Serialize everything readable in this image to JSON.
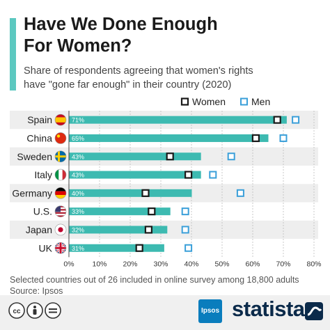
{
  "header": {
    "title_line1": "Have We Done Enough",
    "title_line2": "For Women?",
    "subtitle_line1": "Share of respondents agreeing that women's rights",
    "subtitle_line2": "have \"gone far enough\" in their country (2020)"
  },
  "chart_data": {
    "type": "bar",
    "orientation": "horizontal",
    "categories": [
      "Spain",
      "China",
      "Sweden",
      "Italy",
      "Germany",
      "U.S.",
      "Japan",
      "UK"
    ],
    "bar_labels": [
      "71%",
      "65%",
      "43%",
      "43%",
      "40%",
      "33%",
      "32%",
      "31%"
    ],
    "series": [
      {
        "name": "",
        "kind": "bar",
        "values": [
          71,
          65,
          43,
          43,
          40,
          33,
          32,
          31
        ],
        "color": "#3dbab1"
      },
      {
        "name": "Women",
        "kind": "marker",
        "marker": "filled-square",
        "values": [
          68,
          61,
          33,
          39,
          25,
          27,
          26,
          23
        ],
        "color": "#1a1a1a"
      },
      {
        "name": "Men",
        "kind": "marker",
        "marker": "hollow-square",
        "values": [
          74,
          70,
          53,
          47,
          56,
          38,
          38,
          39
        ],
        "color": "#3a9fd9"
      }
    ],
    "xlim": [
      0,
      80
    ],
    "x_ticks": [
      "0%",
      "10%",
      "20%",
      "30%",
      "40%",
      "50%",
      "60%",
      "70%",
      "80%"
    ],
    "x_tick_values": [
      0,
      10,
      20,
      30,
      40,
      50,
      60,
      70,
      80
    ],
    "legend": {
      "position": "top-right",
      "entries": [
        "Women",
        "Men"
      ]
    },
    "grid": "vertical",
    "flags": [
      "spain-flag-icon",
      "china-flag-icon",
      "sweden-flag-icon",
      "italy-flag-icon",
      "germany-flag-icon",
      "us-flag-icon",
      "japan-flag-icon",
      "uk-flag-icon"
    ]
  },
  "footer": {
    "note_line1": "Selected countries out of 26 included in online survey among 18,800 adults",
    "note_line2": "Source: Ipsos",
    "ipsos_label": "Ipsos",
    "brand": "statista",
    "cc_icons": [
      "cc-icon",
      "by-icon",
      "nd-icon"
    ]
  }
}
